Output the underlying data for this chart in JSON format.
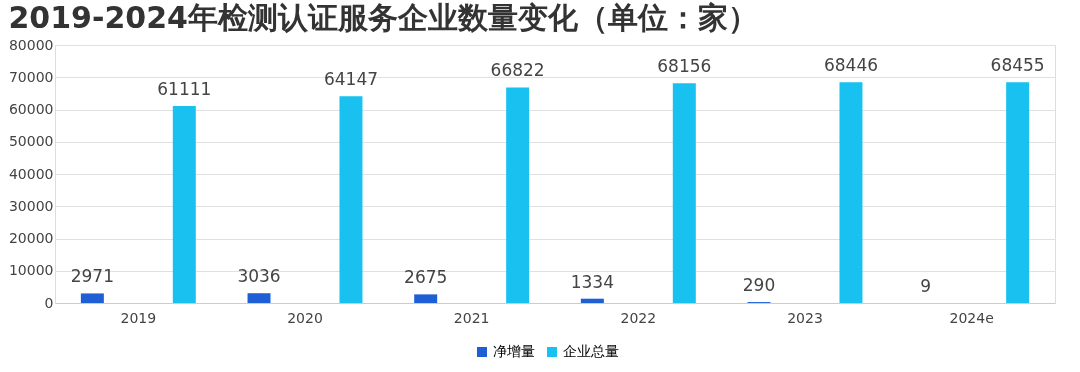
{
  "chart_data": {
    "type": "bar",
    "title": "2019-2024年检测认证服务企业数量变化（单位：家）",
    "categories": [
      "2019",
      "2020",
      "2021",
      "2022",
      "2023",
      "2024e"
    ],
    "series": [
      {
        "name": "净增量",
        "color": "#1f5fd6",
        "values": [
          2971,
          3036,
          2675,
          1334,
          290,
          9
        ]
      },
      {
        "name": "企业总量",
        "color": "#19c1f0",
        "values": [
          61111,
          64147,
          66822,
          68156,
          68446,
          68455
        ]
      }
    ],
    "ylim": [
      0,
      80000
    ],
    "yticks": [
      0,
      10000,
      20000,
      30000,
      40000,
      50000,
      60000,
      70000,
      80000
    ],
    "grid": "y",
    "legend": "bottom",
    "data_labels": true
  }
}
